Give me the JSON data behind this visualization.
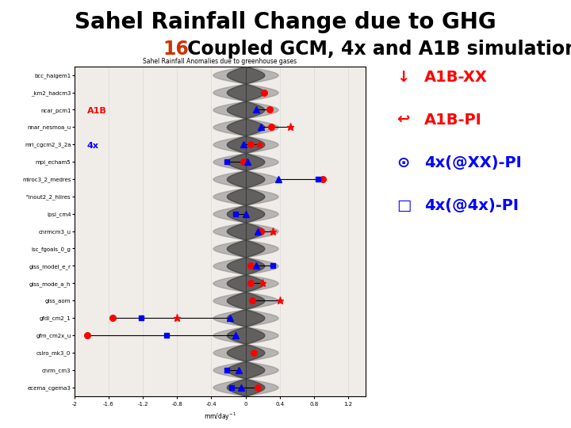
{
  "title_line1": "Sahel Rainfall Change due to GHG",
  "title_line2_prefix": "16",
  "title_line2_rest": " Coupled GCM, 4x and A1B simulation",
  "title_line1_fontsize": 20,
  "title_line2_fontsize": 17,
  "title_color": "black",
  "prefix_color": "#cc3300",
  "inner_chart_title": "Sahel Rainfall Anomalies due to greenhouse gases",
  "models": [
    "bcc_haigem1",
    "_km2_hadcm3",
    "ncar_pcm1",
    "nnar_nesmoa_u",
    "mri_cgcm2_3_2a",
    "mpi_echam5",
    "miroc3_2_medres",
    "''inout2_2_hiires",
    "ipsl_cm4",
    "cnrmcm3_u",
    "isc_fgoals_0_g",
    "giss_model_e_r",
    "giss_mode_a_h",
    "giss_aom",
    "gfdl_cm2_1",
    "gfm_cm2x_u",
    "csiro_mk3_0",
    "cnrm_cm3",
    "ecema_cgema3"
  ],
  "model_data": [
    {
      "rc": null,
      "rs": null,
      "bt": null,
      "bs": null
    },
    {
      "rc": 0.22,
      "rs": null,
      "bt": null,
      "bs": null
    },
    {
      "rc": 0.28,
      "rs": null,
      "bt": 0.12,
      "bs": null
    },
    {
      "rc": 0.3,
      "rs": 0.52,
      "bt": 0.18,
      "bs": null
    },
    {
      "rc": 0.06,
      "rs": 0.16,
      "bt": -0.02,
      "bs": null
    },
    {
      "rc": -0.02,
      "rs": null,
      "bt": 0.02,
      "bs": -0.22
    },
    {
      "rc": 0.9,
      "rs": null,
      "bt": 0.38,
      "bs": 0.85
    },
    {
      "rc": null,
      "rs": null,
      "bt": null,
      "bs": null
    },
    {
      "rc": null,
      "rs": null,
      "bt": 0.0,
      "bs": -0.12
    },
    {
      "rc": 0.18,
      "rs": 0.32,
      "bt": 0.14,
      "bs": null
    },
    {
      "rc": null,
      "rs": null,
      "bt": null,
      "bs": null
    },
    {
      "rc": 0.06,
      "rs": null,
      "bt": 0.12,
      "bs": 0.32
    },
    {
      "rc": 0.06,
      "rs": 0.2,
      "bt": null,
      "bs": null
    },
    {
      "rc": 0.08,
      "rs": 0.4,
      "bt": null,
      "bs": null
    },
    {
      "rc": -1.55,
      "rs": -0.8,
      "bt": -0.18,
      "bs": -1.22
    },
    {
      "rc": -1.85,
      "rs": null,
      "bt": -0.12,
      "bs": -0.92
    },
    {
      "rc": 0.1,
      "rs": null,
      "bt": null,
      "bs": null
    },
    {
      "rc": null,
      "rs": null,
      "bt": -0.08,
      "bs": -0.22
    },
    {
      "rc": 0.14,
      "rs": null,
      "bt": -0.05,
      "bs": -0.16
    }
  ],
  "xlim": [
    -2.0,
    1.4
  ],
  "xticks": [
    -2.0,
    -1.6,
    -1.2,
    -0.8,
    -0.4,
    0.0,
    0.4,
    0.8,
    1.2
  ],
  "background_color": "white"
}
